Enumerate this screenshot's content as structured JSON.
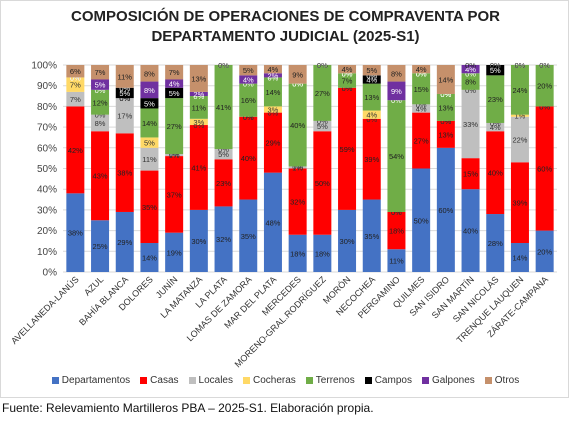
{
  "chart_data": {
    "type": "bar",
    "stacked": true,
    "title_line1": "COMPOSICIÓN DE OPERACIONES DE COMPRAVENTA POR",
    "title_line2": "DEPARTAMENTO JUDICIAL (2025-S1)",
    "xlabel": "",
    "ylabel": "",
    "ylim": [
      0,
      100
    ],
    "yticks": [
      "0%",
      "10%",
      "20%",
      "30%",
      "40%",
      "50%",
      "60%",
      "70%",
      "80%",
      "90%",
      "100%"
    ],
    "grid": true,
    "legend_position": "bottom",
    "categories": [
      "AVELLANEDA-LANÚS",
      "AZUL",
      "BAHÍA BLANCA",
      "DOLORES",
      "JUNÍN",
      "LA MATANZA",
      "LA PLATA",
      "LOMAS DE ZAMORA",
      "MAR DEL PLATA",
      "MERCEDES",
      "MORENO-GRAL.RODRÍGUEZ",
      "MORÓN",
      "NECOCHEA",
      "PERGAMINO",
      "QUILMES",
      "SAN ISIDRO",
      "SAN MARTÍN",
      "SAN NICOLÁS",
      "TRENQUE LAUQUEN",
      "ZÁRATE-CAMPANA"
    ],
    "series": [
      {
        "name": "Departamentos",
        "color": "#4472c4",
        "values": [
          38,
          25,
          29,
          14,
          19,
          30,
          32,
          35,
          48,
          18,
          18,
          30,
          35,
          11,
          50,
          60,
          40,
          28,
          14,
          20
        ],
        "labels": [
          "38%",
          "25%",
          "29%",
          "14%",
          "19%",
          "30%",
          "32%",
          "35%",
          "48%",
          "18%",
          "18%",
          "30%",
          "35%",
          "11%",
          "50%",
          "60%",
          "40%",
          "28%",
          "14%",
          "20%"
        ]
      },
      {
        "name": "Casas",
        "color": "#ff0000",
        "values": [
          42,
          43,
          38,
          35,
          37,
          41,
          23,
          40,
          29,
          32,
          50,
          59,
          39,
          18,
          27,
          13,
          15,
          40,
          39,
          60
        ],
        "labels": [
          "42%",
          "43%",
          "38%",
          "35%",
          "37%",
          "41%",
          "23%",
          "40%",
          "29%",
          "32%",
          "50%",
          "59%",
          "39%",
          "18%",
          "27%",
          "13%",
          "15%",
          "40%",
          "39%",
          "60%"
        ]
      },
      {
        "name": "Locales",
        "color": "#bfbfbf",
        "values": [
          7,
          8,
          17,
          11,
          1,
          0,
          5,
          0,
          0,
          1,
          5,
          0,
          0,
          0,
          4,
          0,
          33,
          4,
          22,
          0
        ],
        "labels": [
          "7%",
          "8%",
          "17%",
          "11%",
          "1%",
          "0%",
          "5%",
          "0%",
          "0%",
          "1%",
          "5%",
          "0%",
          "0%",
          "0%",
          "4%",
          "0%",
          "33%",
          "4%",
          "22%",
          "0%"
        ]
      },
      {
        "name": "Cocheras",
        "color": "#ffd966",
        "values": [
          7,
          0,
          0,
          5,
          0,
          3,
          0,
          0,
          3,
          0,
          0,
          0,
          4,
          0,
          0,
          0,
          0,
          0,
          1,
          0
        ],
        "labels": [
          "7%",
          "0%",
          "0%",
          "5%",
          "0%",
          "3%",
          "0%",
          "0%",
          "3%",
          "0%",
          "0%",
          "0%",
          "4%",
          "0%",
          "0%",
          "0%",
          "0%",
          "0%",
          "1%",
          "0%"
        ]
      },
      {
        "name": "Terrenos",
        "color": "#70ad47",
        "values": [
          0,
          12,
          0,
          14,
          27,
          11,
          41,
          16,
          14,
          40,
          27,
          7,
          13,
          54,
          15,
          13,
          8,
          23,
          24,
          20
        ],
        "labels": [
          "0%",
          "12%",
          "0%",
          "14%",
          "27%",
          "11%",
          "41%",
          "16%",
          "14%",
          "40%",
          "27%",
          "7%",
          "13%",
          "54%",
          "15%",
          "13%",
          "8%",
          "23%",
          "24%",
          "20%"
        ]
      },
      {
        "name": "Campos",
        "color": "#000000",
        "values": [
          0,
          0,
          5,
          5,
          5,
          0,
          0,
          0,
          0,
          0,
          0,
          0,
          4,
          0,
          0,
          0,
          0,
          5,
          0,
          0
        ],
        "labels": [
          "0%",
          "0%",
          "5%",
          "5%",
          "5%",
          "0%",
          "0%",
          "0%",
          "0%",
          "0%",
          "0%",
          "0%",
          "4%",
          "0%",
          "0%",
          "0%",
          "0%",
          "5%",
          "0%",
          "0%"
        ]
      },
      {
        "name": "Galpones",
        "color": "#7030a0",
        "values": [
          0,
          5,
          0,
          8,
          4,
          2,
          0,
          4,
          2,
          0,
          0,
          0,
          0,
          9,
          0,
          0,
          4,
          0,
          0,
          0
        ],
        "labels": [
          "0%",
          "5%",
          "0%",
          "8%",
          "4%",
          "2%",
          "0%",
          "4%",
          "2%",
          "0%",
          "0%",
          "0%",
          "0%",
          "9%",
          "0%",
          "0%",
          "4%",
          "0%",
          "0%",
          "0%"
        ]
      },
      {
        "name": "Otros",
        "color": "#c5906b",
        "values": [
          6,
          7,
          11,
          8,
          7,
          13,
          0,
          5,
          4,
          9,
          0,
          4,
          5,
          8,
          4,
          14,
          0,
          0,
          0,
          0
        ],
        "labels": [
          "6%",
          "7%",
          "11%",
          "8%",
          "7%",
          "13%",
          "0%",
          "5%",
          "4%",
          "9%",
          "0%",
          "4%",
          "5%",
          "8%",
          "4%",
          "14%",
          "0%",
          "0%",
          "0%",
          "0%"
        ]
      }
    ]
  },
  "footer": {
    "source": "Fuente: Relevamiento Martilleros PBA – 2025-S1. Elaboración propia."
  }
}
